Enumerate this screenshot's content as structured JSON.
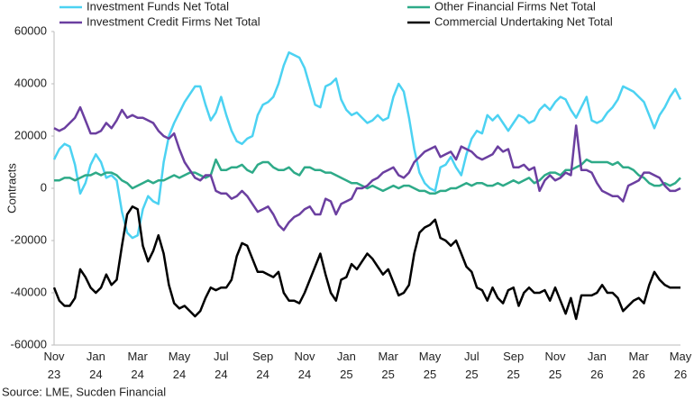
{
  "chart_data": {
    "type": "line",
    "y_label": "Contracts",
    "source": "Source: LME, Sucden Financial",
    "categories": [
      "Nov 23",
      null,
      null,
      null,
      null,
      null,
      null,
      null,
      "Jan 24",
      null,
      null,
      null,
      null,
      null,
      null,
      null,
      "Mar 24",
      null,
      null,
      null,
      null,
      null,
      null,
      null,
      "May 24",
      null,
      null,
      null,
      null,
      null,
      null,
      null,
      "Jul 24",
      null,
      null,
      null,
      null,
      null,
      null,
      null,
      "Sep 24",
      null,
      null,
      null,
      null,
      null,
      null,
      null,
      "Nov 24",
      null,
      null,
      null,
      null,
      null,
      null,
      null,
      "Jan 25",
      null,
      null,
      null,
      null,
      null,
      null,
      null,
      "Mar 25",
      null,
      null,
      null,
      null,
      null,
      null,
      null,
      "May 25",
      null,
      null,
      null,
      null,
      null,
      null,
      null,
      "Jul 25",
      null,
      null,
      null,
      null,
      null,
      null,
      null,
      "Sep 25",
      null,
      null,
      null,
      null,
      null,
      null,
      null,
      "Nov 25",
      null,
      null,
      null,
      null,
      null,
      null,
      null,
      "Jan 26",
      null,
      null,
      null,
      null,
      null,
      null,
      null,
      "Mar 26",
      null,
      null,
      null,
      null,
      null,
      null,
      null,
      "May 26"
    ],
    "ylim": [
      -60000,
      60000
    ],
    "yticks": [
      -60000,
      -40000,
      -20000,
      0,
      20000,
      40000,
      60000
    ],
    "grid": false,
    "legend": "top",
    "series": [
      {
        "name": "Investment Funds Net Total",
        "color": "#4cd2f2",
        "values": [
          11000,
          15000,
          17000,
          16000,
          9000,
          -2000,
          2000,
          9000,
          13000,
          10000,
          4000,
          5000,
          3000,
          -9000,
          -17000,
          -19000,
          -18000,
          -8000,
          -3000,
          -5000,
          -6000,
          10000,
          20000,
          25000,
          29000,
          33000,
          36000,
          39000,
          39000,
          32000,
          26000,
          29000,
          35000,
          28000,
          22000,
          18000,
          17000,
          19000,
          20000,
          28000,
          32000,
          33000,
          35000,
          40000,
          47000,
          52000,
          51000,
          50000,
          46000,
          39000,
          32000,
          31000,
          39000,
          40000,
          42000,
          34000,
          30000,
          28000,
          29000,
          27000,
          25000,
          26000,
          28000,
          26000,
          27000,
          35000,
          40000,
          37000,
          27000,
          15000,
          6000,
          2000,
          0,
          -1000,
          8000,
          9000,
          12000,
          8000,
          5000,
          13000,
          19000,
          22000,
          21000,
          28000,
          26000,
          28000,
          25000,
          22000,
          25000,
          28000,
          27000,
          25000,
          26000,
          30000,
          32000,
          30000,
          33000,
          35000,
          34000,
          30000,
          27000,
          31000,
          35000,
          26000,
          25000,
          26000,
          29000,
          31000,
          34000,
          39000,
          38000,
          37000,
          35000,
          33000,
          28000,
          23000,
          28000,
          31000,
          35000,
          38000,
          34000
        ]
      },
      {
        "name": "Other Financial Firms Net Total",
        "color": "#2eaa88",
        "values": [
          3000,
          3000,
          4000,
          4000,
          3000,
          4000,
          5000,
          5000,
          6000,
          5000,
          6000,
          6000,
          5000,
          3000,
          2000,
          0,
          1000,
          2000,
          3000,
          2000,
          3000,
          3000,
          4000,
          5000,
          4000,
          5000,
          6000,
          6000,
          5000,
          4000,
          5000,
          11000,
          7000,
          7000,
          8000,
          8000,
          9000,
          7000,
          6000,
          9000,
          10000,
          10000,
          8000,
          7000,
          7000,
          8000,
          6000,
          5000,
          8000,
          8000,
          7000,
          7000,
          6000,
          6000,
          5000,
          4000,
          3000,
          2000,
          2000,
          1000,
          0,
          1000,
          0,
          -1000,
          0,
          1000,
          0,
          1000,
          1000,
          0,
          -1000,
          -1000,
          -2000,
          -2000,
          -1000,
          -1000,
          0,
          0,
          1000,
          2000,
          1000,
          2000,
          2000,
          1000,
          1000,
          2000,
          1000,
          2000,
          3000,
          2000,
          3000,
          4000,
          2000,
          3000,
          5000,
          6000,
          6000,
          5000,
          7000,
          7000,
          8000,
          9000,
          11000,
          10000,
          10000,
          10000,
          10000,
          9000,
          10000,
          8000,
          8000,
          7000,
          5000,
          4000,
          2000,
          1000,
          1000,
          2000,
          1000,
          2000,
          4000
        ]
      },
      {
        "name": "Investment Credit Firms Net Total",
        "color": "#6b3fa0",
        "values": [
          23000,
          22000,
          23000,
          25000,
          27000,
          31000,
          26000,
          21000,
          21000,
          22000,
          25000,
          23000,
          26000,
          30000,
          27000,
          28000,
          27000,
          27000,
          26000,
          25000,
          22000,
          20000,
          19000,
          21000,
          15000,
          10000,
          7000,
          4000,
          3000,
          5000,
          5000,
          -1000,
          -2000,
          -2000,
          -4000,
          -3000,
          -1000,
          -3000,
          -6000,
          -9000,
          -8000,
          -7000,
          -10000,
          -14000,
          -16000,
          -13000,
          -11000,
          -10000,
          -8000,
          -7000,
          -10000,
          -10000,
          -4000,
          -5000,
          -10000,
          -6000,
          -5000,
          -4000,
          0,
          0,
          1000,
          3000,
          4000,
          6000,
          7000,
          8000,
          5000,
          4000,
          6000,
          10000,
          12000,
          14000,
          15000,
          16000,
          12000,
          13000,
          14000,
          11000,
          16000,
          15000,
          14000,
          12000,
          11000,
          12000,
          13000,
          16000,
          14000,
          15000,
          8000,
          8000,
          9000,
          7000,
          8000,
          -1000,
          3000,
          5000,
          3000,
          4000,
          6000,
          5000,
          24000,
          7000,
          7000,
          6000,
          2000,
          -1000,
          -2000,
          -3000,
          -3000,
          -5000,
          1000,
          2000,
          3000,
          6000,
          6000,
          5000,
          4000,
          1000,
          -1000,
          -1000,
          0
        ]
      },
      {
        "name": "Commercial Undertaking Net Total",
        "color": "#000000",
        "values": [
          -38000,
          -43000,
          -45000,
          -45000,
          -42000,
          -31000,
          -34000,
          -38000,
          -40000,
          -38000,
          -33000,
          -37000,
          -35000,
          -22000,
          -10000,
          -7000,
          -8000,
          -22000,
          -28000,
          -24000,
          -18000,
          -25000,
          -37000,
          -44000,
          -46000,
          -45000,
          -47000,
          -49000,
          -47000,
          -42000,
          -38000,
          -39000,
          -38000,
          -38000,
          -35000,
          -26000,
          -21000,
          -22000,
          -27000,
          -32000,
          -32000,
          -33000,
          -34000,
          -32000,
          -40000,
          -43000,
          -43000,
          -44000,
          -40000,
          -35000,
          -30000,
          -25000,
          -33000,
          -40000,
          -43000,
          -35000,
          -34000,
          -29000,
          -31000,
          -28000,
          -25000,
          -27000,
          -30000,
          -33000,
          -31000,
          -36000,
          -41000,
          -40000,
          -37000,
          -25000,
          -17000,
          -15000,
          -14000,
          -12000,
          -19000,
          -20000,
          -22000,
          -20000,
          -25000,
          -30000,
          -32000,
          -38000,
          -39000,
          -43000,
          -38000,
          -42000,
          -44000,
          -39000,
          -38000,
          -45000,
          -40000,
          -38000,
          -40000,
          -40000,
          -39000,
          -43000,
          -38000,
          -43000,
          -48000,
          -42000,
          -50000,
          -41000,
          -41000,
          -41000,
          -40000,
          -37000,
          -40000,
          -40000,
          -42000,
          -47000,
          -45000,
          -43000,
          -42000,
          -44000,
          -37000,
          -32000,
          -35000,
          -37000,
          -38000,
          -38000,
          -38000
        ]
      }
    ]
  }
}
